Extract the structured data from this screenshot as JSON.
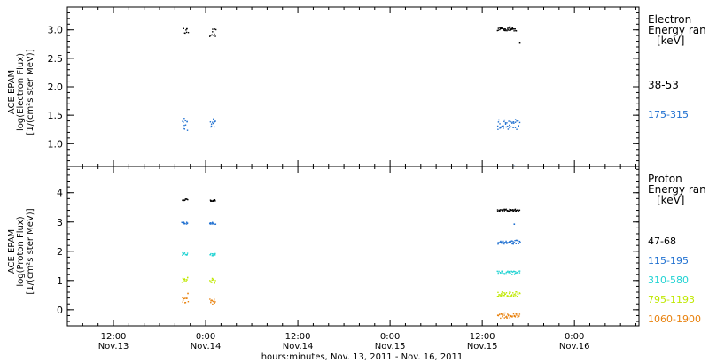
{
  "chart_data": [
    {
      "type": "scatter",
      "panel": "electron",
      "ylabel_lines": [
        "ACE EPAM",
        "log(Electron Flux)",
        "[1/(cm²s ster MeV)]"
      ],
      "ylim": [
        0.6,
        3.4
      ],
      "yticks": [
        1.0,
        1.5,
        2.0,
        2.5,
        3.0
      ],
      "ytick_labels": [
        "1.0",
        "1.5",
        "2.0",
        "2.5",
        "3.0"
      ],
      "legend_title": [
        "Electron",
        "Energy ran",
        "[keV]"
      ],
      "series": [
        {
          "name": "38-53",
          "color": "#000000",
          "segments": [
            {
              "x": [
                0.88,
                0.9
              ],
              "y": 3.0,
              "jitter": 0.05
            },
            {
              "x": [
                1.02,
                1.05
              ],
              "y": 2.96,
              "jitter": 0.07
            },
            {
              "x": [
                2.58,
                2.68
              ],
              "y": 3.03,
              "jitter": 0.04
            }
          ],
          "points": [
            [
              2.7,
              2.78
            ]
          ]
        },
        {
          "name": "175-315",
          "color": "#1e6fd0",
          "segments": [
            {
              "x": [
                0.87,
                0.9
              ],
              "y": 1.35,
              "jitter": 0.11
            },
            {
              "x": [
                1.02,
                1.05
              ],
              "y": 1.36,
              "jitter": 0.1
            },
            {
              "x": [
                2.58,
                2.7
              ],
              "y": 1.35,
              "jitter": 0.09
            }
          ],
          "points": [
            [
              2.67,
              0.62
            ]
          ]
        }
      ]
    },
    {
      "type": "scatter",
      "panel": "proton",
      "ylabel_lines": [
        "ACE EPAM",
        "log(Proton Flux)",
        "[1/(cm²s ster MeV)]"
      ],
      "ylim": [
        -0.55,
        4.9
      ],
      "yticks": [
        0,
        1,
        2,
        3,
        4
      ],
      "ytick_labels": [
        "0",
        "1",
        "2",
        "3",
        "4"
      ],
      "legend_title": [
        "Proton",
        "Energy ran",
        "[keV]"
      ],
      "series": [
        {
          "name": "47-68",
          "color": "#000000",
          "segments": [
            {
              "x": [
                0.87,
                0.9
              ],
              "y": 3.78,
              "jitter": 0.03
            },
            {
              "x": [
                1.02,
                1.05
              ],
              "y": 3.76,
              "jitter": 0.03
            },
            {
              "x": [
                2.58,
                2.7
              ],
              "y": 3.42,
              "jitter": 0.04
            }
          ],
          "points": []
        },
        {
          "name": "115-195",
          "color": "#1e6fd0",
          "segments": [
            {
              "x": [
                0.87,
                0.9
              ],
              "y": 2.98,
              "jitter": 0.04
            },
            {
              "x": [
                1.02,
                1.05
              ],
              "y": 2.97,
              "jitter": 0.04
            },
            {
              "x": [
                2.58,
                2.7
              ],
              "y": 2.33,
              "jitter": 0.07
            }
          ],
          "points": [
            [
              2.67,
              2.95
            ]
          ]
        },
        {
          "name": "310-580",
          "color": "#22d3d3",
          "segments": [
            {
              "x": [
                0.87,
                0.9
              ],
              "y": 1.92,
              "jitter": 0.05
            },
            {
              "x": [
                1.02,
                1.05
              ],
              "y": 1.9,
              "jitter": 0.05
            },
            {
              "x": [
                2.58,
                2.7
              ],
              "y": 1.28,
              "jitter": 0.07
            }
          ],
          "points": []
        },
        {
          "name": "795-1193",
          "color": "#bfe800",
          "segments": [
            {
              "x": [
                0.87,
                0.9
              ],
              "y": 1.05,
              "jitter": 0.09
            },
            {
              "x": [
                1.02,
                1.05
              ],
              "y": 1.02,
              "jitter": 0.09
            },
            {
              "x": [
                2.58,
                2.7
              ],
              "y": 0.56,
              "jitter": 0.09
            }
          ],
          "points": []
        },
        {
          "name": "1060-1900",
          "color": "#e8820f",
          "segments": [
            {
              "x": [
                0.87,
                0.9
              ],
              "y": 0.35,
              "jitter": 0.09
            },
            {
              "x": [
                1.02,
                1.05
              ],
              "y": 0.3,
              "jitter": 0.09
            },
            {
              "x": [
                2.58,
                2.7
              ],
              "y": -0.18,
              "jitter": 0.09
            }
          ],
          "points": [
            [
              0.9,
              0.58
            ]
          ]
        }
      ]
    }
  ],
  "x_axis": {
    "unit": "days since 2011-11-13 00:00 UT",
    "xlim": [
      0.25,
      3.35
    ],
    "major_ticks": [
      0.5,
      1.0,
      1.5,
      2.0,
      2.5,
      3.0
    ],
    "tick_time_labels": [
      "12:00",
      "0:00",
      "12:00",
      "0:00",
      "12:00",
      "0:00"
    ],
    "tick_date_labels": [
      "Nov.13",
      "Nov.14",
      "Nov.14",
      "Nov.15",
      "Nov.15",
      "Nov.16"
    ],
    "xlabel": "hours:minutes, Nov. 13, 2011 - Nov. 16, 2011"
  }
}
